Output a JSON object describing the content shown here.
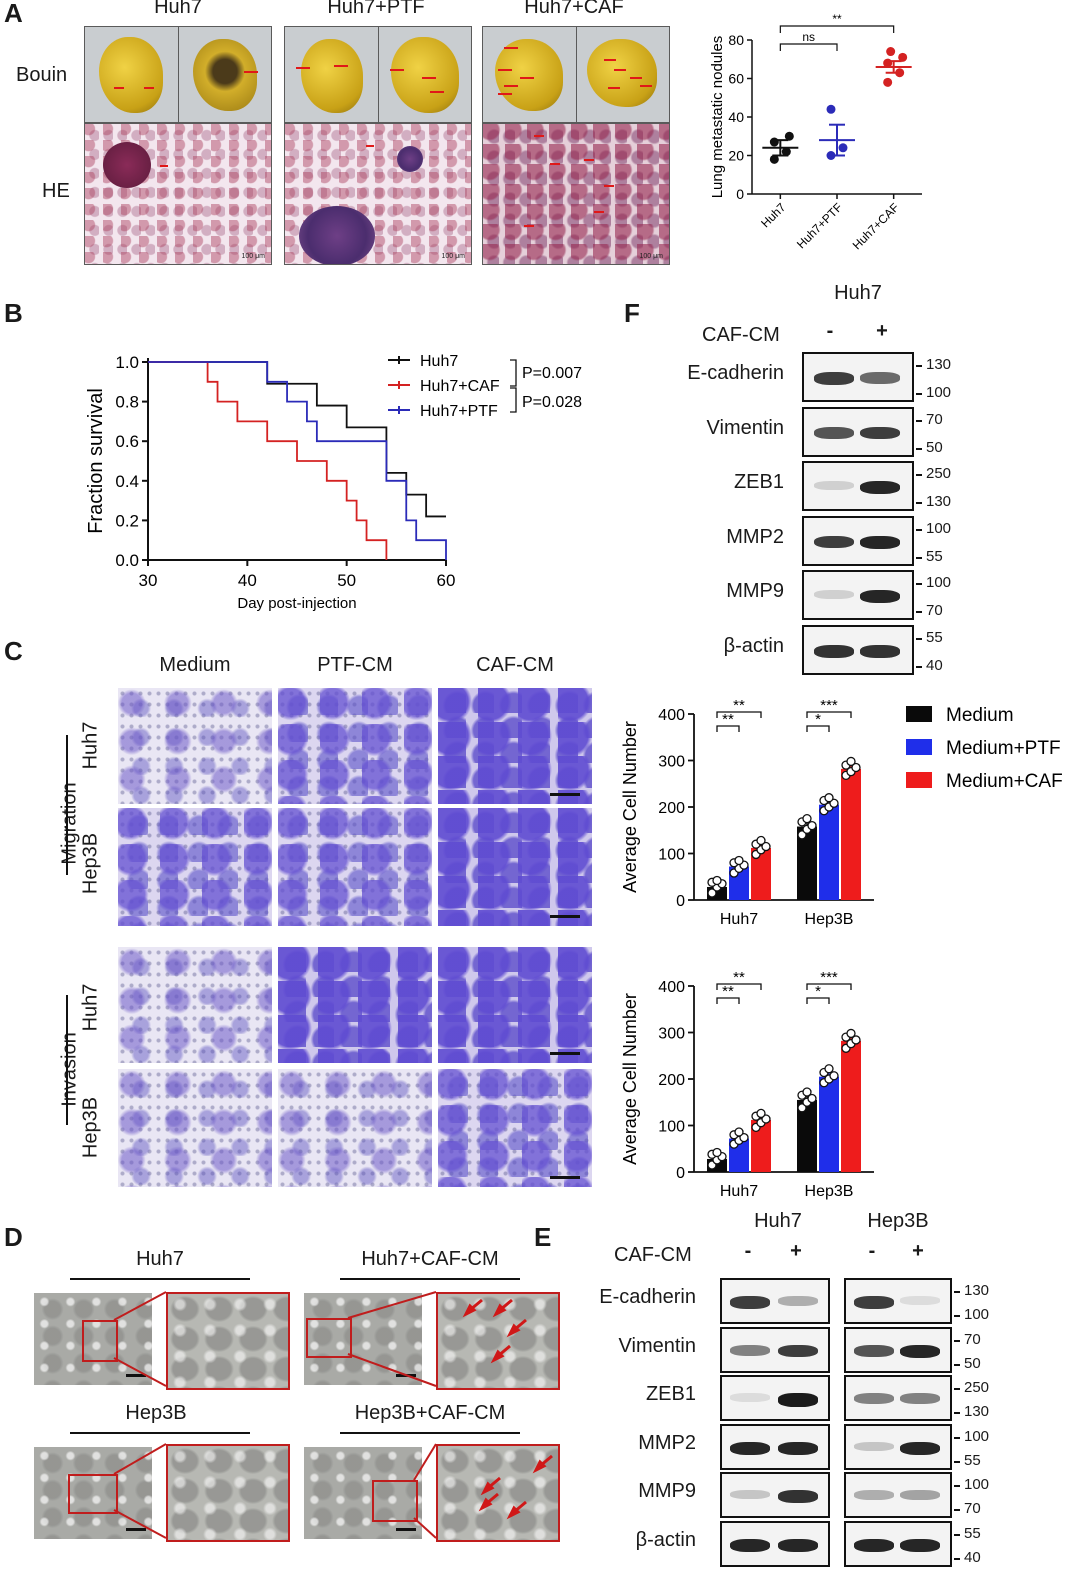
{
  "panels": {
    "A": {
      "letter": "A",
      "groups": [
        "Huh7",
        "Huh7+PTF",
        "Huh7+CAF"
      ],
      "row_labels": [
        "Bouin",
        "HE"
      ],
      "scale_labels": [
        "100 μm",
        "100 μm",
        "100 μm"
      ]
    },
    "B": {
      "letter": "B",
      "p_values": [
        "P=0.007",
        "P=0.028"
      ]
    },
    "C": {
      "letter": "C",
      "columns": [
        "Medium",
        "PTF-CM",
        "CAF-CM"
      ],
      "assays": [
        "Migration",
        "Invasion"
      ],
      "cell_lines": [
        "Huh7",
        "Hep3B",
        "Huh7",
        "Hep3B"
      ]
    },
    "D": {
      "letter": "D",
      "titles": [
        "Huh7",
        "Huh7+CAF-CM",
        "Hep3B",
        "Hep3B+CAF-CM"
      ]
    },
    "E": {
      "letter": "E",
      "cell_lines": [
        "Huh7",
        "Hep3B"
      ],
      "treatment": "CAF-CM",
      "lanes": [
        "-",
        "+",
        "-",
        "+"
      ],
      "proteins": [
        "E-cadherin",
        "Vimentin",
        "ZEB1",
        "MMP2",
        "MMP9",
        "β-actin"
      ],
      "mw": [
        [
          "130",
          "100"
        ],
        [
          "70",
          "50"
        ],
        [
          "250",
          "130"
        ],
        [
          "100",
          "55"
        ],
        [
          "100",
          "70"
        ],
        [
          "55",
          "40"
        ]
      ]
    },
    "F": {
      "letter": "F",
      "cell_line": "Huh7",
      "treatment": "CAF-CM",
      "lanes": [
        "-",
        "+"
      ],
      "proteins": [
        "E-cadherin",
        "Vimentin",
        "ZEB1",
        "MMP2",
        "MMP9",
        "β-actin"
      ],
      "mw": [
        [
          "130",
          "100"
        ],
        [
          "70",
          "50"
        ],
        [
          "250",
          "130"
        ],
        [
          "100",
          "55"
        ],
        [
          "100",
          "70"
        ],
        [
          "55",
          "40"
        ]
      ]
    }
  },
  "chart_data": [
    {
      "id": "A-dot-plot",
      "type": "scatter",
      "categories": [
        "Huh7",
        "Huh7+PTF",
        "Huh7+CAF"
      ],
      "ylabel": "Lung metastatic nodules",
      "ylim": [
        0,
        80
      ],
      "yticks": [
        0,
        20,
        40,
        60,
        80
      ],
      "points": [
        [
          18,
          22,
          27,
          30
        ],
        [
          20,
          24,
          44
        ],
        [
          58,
          63,
          68,
          71,
          74
        ]
      ],
      "mean": [
        24,
        28,
        66
      ],
      "sem": [
        4,
        8,
        3
      ],
      "colors": [
        "#111111",
        "#2b2bb8",
        "#d42222"
      ],
      "significance": [
        {
          "from": 0,
          "to": 1,
          "label": "ns"
        },
        {
          "from": 0,
          "to": 2,
          "label": "**"
        }
      ]
    },
    {
      "id": "B-survival",
      "type": "line",
      "xlabel": "Day post-injection",
      "ylabel": "Fraction survival",
      "xlim": [
        30,
        60
      ],
      "ylim": [
        0,
        1.0
      ],
      "xticks": [
        30,
        40,
        50,
        60
      ],
      "yticks": [
        0.0,
        0.2,
        0.4,
        0.6,
        0.8,
        1.0
      ],
      "series": [
        {
          "name": "Huh7",
          "color": "#111111",
          "steps": [
            [
              30,
              1.0
            ],
            [
              42,
              1.0
            ],
            [
              42,
              0.89
            ],
            [
              47,
              0.89
            ],
            [
              47,
              0.78
            ],
            [
              50,
              0.78
            ],
            [
              50,
              0.67
            ],
            [
              54,
              0.67
            ],
            [
              54,
              0.44
            ],
            [
              56,
              0.44
            ],
            [
              56,
              0.33
            ],
            [
              58,
              0.33
            ],
            [
              58,
              0.22
            ],
            [
              60,
              0.22
            ]
          ]
        },
        {
          "name": "Huh7+CAF",
          "color": "#d42222",
          "steps": [
            [
              30,
              1.0
            ],
            [
              36,
              1.0
            ],
            [
              36,
              0.9
            ],
            [
              37,
              0.9
            ],
            [
              37,
              0.8
            ],
            [
              39,
              0.8
            ],
            [
              39,
              0.7
            ],
            [
              42,
              0.7
            ],
            [
              42,
              0.6
            ],
            [
              45,
              0.6
            ],
            [
              45,
              0.5
            ],
            [
              48,
              0.5
            ],
            [
              48,
              0.4
            ],
            [
              50,
              0.4
            ],
            [
              50,
              0.3
            ],
            [
              51,
              0.3
            ],
            [
              51,
              0.2
            ],
            [
              52,
              0.2
            ],
            [
              52,
              0.1
            ],
            [
              54,
              0.1
            ],
            [
              54,
              0.0
            ]
          ]
        },
        {
          "name": "Huh7+PTF",
          "color": "#2b2bb8",
          "steps": [
            [
              30,
              1.0
            ],
            [
              42,
              1.0
            ],
            [
              42,
              0.9
            ],
            [
              44,
              0.9
            ],
            [
              44,
              0.8
            ],
            [
              46,
              0.8
            ],
            [
              46,
              0.7
            ],
            [
              47,
              0.7
            ],
            [
              47,
              0.6
            ],
            [
              54,
              0.6
            ],
            [
              54,
              0.4
            ],
            [
              56,
              0.4
            ],
            [
              56,
              0.2
            ],
            [
              57,
              0.2
            ],
            [
              57,
              0.1
            ],
            [
              60,
              0.1
            ],
            [
              60,
              0.0
            ]
          ]
        }
      ]
    },
    {
      "id": "C-migration",
      "type": "bar",
      "categories": [
        "Huh7",
        "Hep3B"
      ],
      "ylabel": "Average Cell Number",
      "ylim": [
        0,
        400
      ],
      "yticks": [
        0,
        100,
        200,
        300,
        400
      ],
      "series": [
        {
          "name": "Medium",
          "color": "#0a0a0a",
          "values": [
            28,
            158
          ],
          "points": [
            [
              15,
              28,
              35,
              38,
              42
            ],
            [
              140,
              152,
              160,
              168,
              175
            ]
          ]
        },
        {
          "name": "Medium+PTF",
          "color": "#1f2eea",
          "values": [
            72,
            205
          ],
          "points": [
            [
              58,
              68,
              75,
              80,
              85
            ],
            [
              192,
              200,
              208,
              214,
              220
            ]
          ]
        },
        {
          "name": "Medium+CAF",
          "color": "#ee1c1c",
          "values": [
            112,
            282
          ],
          "points": [
            [
              98,
              108,
              115,
              120,
              128
            ],
            [
              268,
              276,
              285,
              290,
              298
            ]
          ]
        }
      ],
      "significance": [
        {
          "group": 0,
          "from": 0,
          "to": 1,
          "label": "**"
        },
        {
          "group": 0,
          "from": 0,
          "to": 2,
          "label": "**"
        },
        {
          "group": 1,
          "from": 0,
          "to": 1,
          "label": "*"
        },
        {
          "group": 1,
          "from": 0,
          "to": 2,
          "label": "***"
        }
      ]
    },
    {
      "id": "C-invasion",
      "type": "bar",
      "categories": [
        "Huh7",
        "Hep3B"
      ],
      "ylabel": "Average Cell Number",
      "ylim": [
        0,
        400
      ],
      "yticks": [
        0,
        100,
        200,
        300,
        400
      ],
      "series": [
        {
          "name": "Medium",
          "color": "#0a0a0a",
          "values": [
            28,
            155
          ],
          "points": [
            [
              15,
              26,
              33,
              38,
              42
            ],
            [
              138,
              150,
              158,
              165,
              172
            ]
          ]
        },
        {
          "name": "Medium+PTF",
          "color": "#1f2eea",
          "values": [
            72,
            205
          ],
          "points": [
            [
              60,
              68,
              74,
              80,
              86
            ],
            [
              192,
              200,
              207,
              214,
              222
            ]
          ]
        },
        {
          "name": "Medium+CAF",
          "color": "#ee1c1c",
          "values": [
            112,
            282
          ],
          "points": [
            [
              96,
              106,
              114,
              120,
              126
            ],
            [
              266,
              276,
              284,
              290,
              298
            ]
          ]
        }
      ],
      "significance": [
        {
          "group": 0,
          "from": 0,
          "to": 1,
          "label": "**"
        },
        {
          "group": 0,
          "from": 0,
          "to": 2,
          "label": "**"
        },
        {
          "group": 1,
          "from": 0,
          "to": 1,
          "label": "*"
        },
        {
          "group": 1,
          "from": 0,
          "to": 2,
          "label": "***"
        }
      ]
    }
  ]
}
